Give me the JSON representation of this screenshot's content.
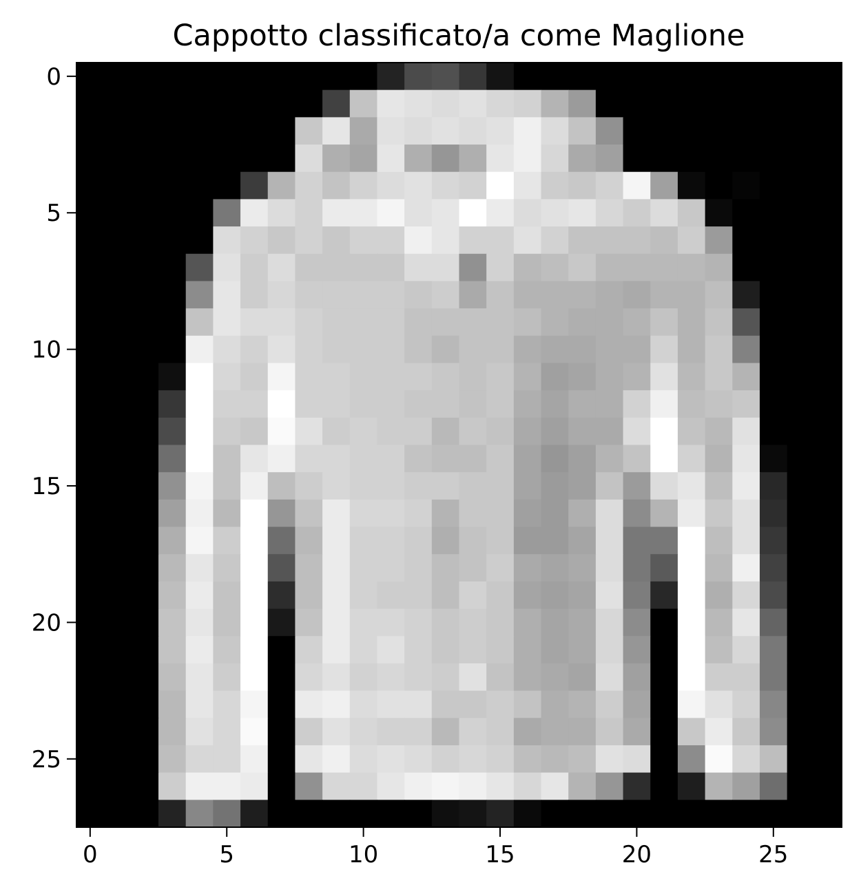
{
  "chart_data": {
    "type": "heatmap",
    "title": "Cappotto classificato/a come Maglione",
    "xlabel": "",
    "ylabel": "",
    "colormap": "gray",
    "value_range": [
      0,
      255
    ],
    "grid": false,
    "xlim": [
      -0.5,
      27.5
    ],
    "ylim": [
      27.5,
      -0.5
    ],
    "x_ticks": [
      0,
      5,
      10,
      15,
      20,
      25
    ],
    "y_ticks": [
      0,
      5,
      10,
      15,
      20,
      25
    ],
    "x_tick_labels": [
      "0",
      "5",
      "10",
      "15",
      "20",
      "25"
    ],
    "y_tick_labels": [
      "0",
      "5",
      "10",
      "15",
      "20",
      "25"
    ],
    "values": [
      [
        0,
        0,
        0,
        0,
        0,
        0,
        0,
        0,
        0,
        0,
        0,
        35,
        75,
        80,
        55,
        20,
        0,
        0,
        0,
        0,
        0,
        0,
        0,
        0,
        0,
        0,
        0,
        0
      ],
      [
        0,
        0,
        0,
        0,
        0,
        0,
        0,
        0,
        0,
        65,
        195,
        230,
        225,
        220,
        225,
        215,
        210,
        180,
        155,
        0,
        0,
        0,
        0,
        0,
        0,
        0,
        0,
        0
      ],
      [
        0,
        0,
        0,
        0,
        0,
        0,
        0,
        0,
        200,
        230,
        170,
        225,
        220,
        225,
        220,
        225,
        240,
        220,
        195,
        145,
        0,
        0,
        0,
        0,
        0,
        0,
        0,
        0
      ],
      [
        0,
        0,
        0,
        0,
        0,
        0,
        0,
        0,
        220,
        175,
        165,
        230,
        175,
        150,
        175,
        230,
        240,
        215,
        170,
        160,
        0,
        0,
        0,
        0,
        0,
        0,
        0,
        0
      ],
      [
        0,
        0,
        0,
        0,
        0,
        0,
        60,
        180,
        210,
        195,
        210,
        220,
        225,
        215,
        210,
        255,
        230,
        205,
        200,
        210,
        245,
        160,
        10,
        0,
        5,
        0,
        0,
        0
      ],
      [
        0,
        0,
        0,
        0,
        0,
        120,
        235,
        220,
        210,
        235,
        235,
        245,
        225,
        230,
        255,
        235,
        220,
        225,
        230,
        215,
        205,
        220,
        200,
        10,
        0,
        0,
        0,
        0
      ],
      [
        0,
        0,
        0,
        0,
        0,
        220,
        210,
        200,
        210,
        200,
        210,
        210,
        240,
        230,
        210,
        210,
        225,
        210,
        195,
        195,
        195,
        190,
        205,
        155,
        0,
        0,
        0,
        0
      ],
      [
        0,
        0,
        0,
        0,
        85,
        225,
        205,
        220,
        200,
        200,
        200,
        200,
        220,
        220,
        145,
        210,
        185,
        190,
        200,
        185,
        185,
        185,
        185,
        180,
        0,
        0,
        0,
        0
      ],
      [
        0,
        0,
        0,
        0,
        140,
        230,
        205,
        215,
        205,
        205,
        205,
        205,
        200,
        205,
        170,
        195,
        180,
        180,
        180,
        175,
        170,
        180,
        180,
        190,
        30,
        0,
        0,
        0
      ],
      [
        0,
        0,
        0,
        0,
        195,
        230,
        220,
        220,
        210,
        205,
        205,
        205,
        195,
        195,
        195,
        195,
        190,
        180,
        175,
        175,
        180,
        195,
        180,
        195,
        85,
        0,
        0,
        0
      ],
      [
        0,
        0,
        0,
        0,
        240,
        220,
        210,
        225,
        210,
        205,
        205,
        205,
        195,
        185,
        195,
        195,
        175,
        170,
        170,
        175,
        175,
        210,
        180,
        200,
        130,
        0,
        0,
        0
      ],
      [
        0,
        0,
        0,
        15,
        255,
        215,
        205,
        245,
        210,
        210,
        205,
        205,
        205,
        200,
        195,
        200,
        180,
        160,
        165,
        175,
        180,
        225,
        185,
        200,
        180,
        0,
        0,
        0
      ],
      [
        0,
        0,
        0,
        55,
        255,
        210,
        210,
        255,
        210,
        210,
        205,
        205,
        200,
        200,
        195,
        200,
        175,
        165,
        175,
        175,
        210,
        240,
        190,
        195,
        200,
        0,
        0,
        0
      ],
      [
        0,
        0,
        0,
        75,
        255,
        205,
        200,
        250,
        225,
        205,
        210,
        205,
        205,
        185,
        200,
        195,
        170,
        160,
        170,
        170,
        220,
        255,
        195,
        185,
        225,
        0,
        0,
        0
      ],
      [
        0,
        0,
        0,
        110,
        255,
        195,
        230,
        240,
        215,
        215,
        210,
        210,
        195,
        190,
        190,
        200,
        165,
        150,
        160,
        180,
        195,
        255,
        210,
        180,
        230,
        10,
        0,
        0
      ],
      [
        0,
        0,
        0,
        145,
        245,
        195,
        240,
        190,
        205,
        215,
        210,
        210,
        205,
        205,
        200,
        200,
        165,
        155,
        160,
        195,
        155,
        220,
        230,
        190,
        235,
        40,
        0,
        0
      ],
      [
        0,
        0,
        0,
        160,
        240,
        185,
        255,
        150,
        195,
        235,
        215,
        215,
        210,
        180,
        200,
        200,
        160,
        155,
        175,
        220,
        140,
        180,
        235,
        200,
        225,
        45,
        0,
        0
      ],
      [
        0,
        0,
        0,
        175,
        245,
        205,
        255,
        110,
        185,
        235,
        210,
        210,
        205,
        175,
        195,
        200,
        155,
        155,
        165,
        220,
        120,
        120,
        255,
        190,
        225,
        55,
        0,
        0
      ],
      [
        0,
        0,
        0,
        185,
        230,
        200,
        255,
        85,
        190,
        235,
        210,
        210,
        205,
        190,
        195,
        205,
        170,
        165,
        170,
        220,
        120,
        90,
        255,
        185,
        240,
        65,
        0,
        0
      ],
      [
        0,
        0,
        0,
        190,
        235,
        195,
        255,
        45,
        190,
        235,
        210,
        205,
        205,
        190,
        210,
        200,
        165,
        160,
        165,
        225,
        125,
        40,
        255,
        175,
        215,
        75,
        0,
        0
      ],
      [
        0,
        0,
        0,
        195,
        230,
        195,
        255,
        25,
        195,
        235,
        215,
        215,
        210,
        200,
        205,
        200,
        175,
        165,
        170,
        215,
        140,
        0,
        255,
        185,
        230,
        100,
        0,
        0
      ],
      [
        0,
        0,
        0,
        195,
        235,
        200,
        255,
        0,
        210,
        235,
        215,
        225,
        210,
        200,
        205,
        200,
        175,
        165,
        170,
        215,
        150,
        0,
        255,
        190,
        215,
        120,
        0,
        0
      ],
      [
        0,
        0,
        0,
        190,
        230,
        205,
        255,
        0,
        215,
        225,
        210,
        215,
        210,
        205,
        225,
        195,
        175,
        170,
        165,
        220,
        160,
        0,
        255,
        205,
        205,
        120,
        0,
        0
      ],
      [
        0,
        0,
        0,
        185,
        230,
        215,
        245,
        0,
        235,
        240,
        220,
        225,
        225,
        200,
        200,
        205,
        195,
        175,
        180,
        205,
        165,
        0,
        245,
        225,
        210,
        135,
        0,
        0
      ],
      [
        0,
        0,
        0,
        185,
        225,
        215,
        250,
        0,
        205,
        225,
        215,
        210,
        210,
        185,
        210,
        205,
        170,
        175,
        175,
        200,
        170,
        0,
        200,
        235,
        200,
        140,
        0,
        0
      ],
      [
        0,
        0,
        0,
        190,
        215,
        215,
        240,
        0,
        230,
        240,
        220,
        225,
        220,
        210,
        215,
        210,
        190,
        185,
        190,
        225,
        220,
        0,
        140,
        250,
        215,
        190,
        0,
        0
      ],
      [
        0,
        0,
        0,
        205,
        240,
        240,
        235,
        0,
        145,
        215,
        215,
        230,
        240,
        245,
        240,
        230,
        215,
        230,
        180,
        150,
        45,
        0,
        30,
        180,
        160,
        110,
        0,
        0
      ],
      [
        0,
        0,
        0,
        35,
        135,
        115,
        30,
        0,
        0,
        0,
        0,
        0,
        0,
        15,
        20,
        35,
        10,
        0,
        0,
        0,
        0,
        0,
        0,
        0,
        0,
        0,
        0,
        0
      ]
    ]
  }
}
